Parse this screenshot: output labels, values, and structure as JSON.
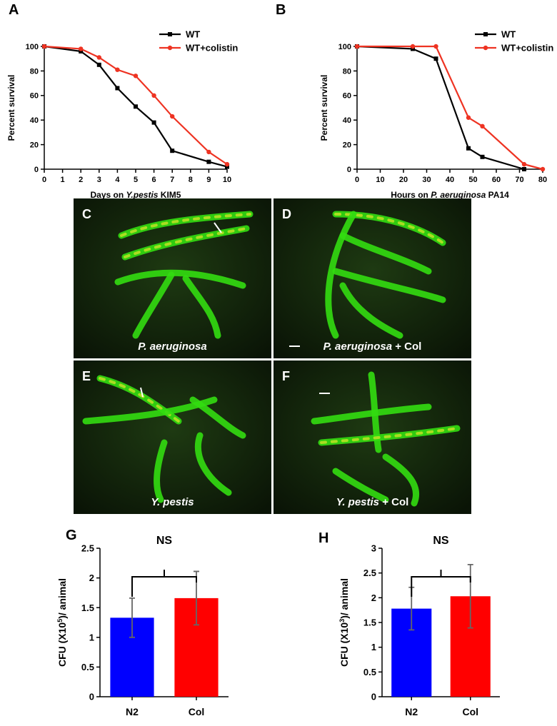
{
  "chart_data": [
    {
      "type": "line",
      "panel_label": "A",
      "xlabel_parts": [
        {
          "text": "Days on "
        },
        {
          "text": "Y.pestis",
          "italic": true
        },
        {
          "text": " KIM5"
        }
      ],
      "ylabel_parts": [
        {
          "text": "Percent survival"
        }
      ],
      "xlim": [
        0,
        10
      ],
      "xticks": [
        0,
        1,
        2,
        3,
        4,
        5,
        6,
        7,
        8,
        9,
        10
      ],
      "ylim": [
        0,
        100
      ],
      "yticks": [
        0,
        20,
        40,
        60,
        80,
        100
      ],
      "legend": "top-right",
      "series": [
        {
          "name": "WT",
          "color": "#000000",
          "marker": "square",
          "x": [
            0,
            2,
            3,
            4,
            5,
            6,
            7,
            9,
            10
          ],
          "values": [
            100,
            96,
            85,
            66,
            51,
            38,
            15,
            6,
            2
          ]
        },
        {
          "name": "WT+colistin",
          "color": "#ee3322",
          "marker": "circle",
          "x": [
            0,
            2,
            3,
            4,
            5,
            6,
            7,
            9,
            10
          ],
          "values": [
            100,
            98,
            91,
            81,
            76,
            60,
            43,
            14,
            4
          ]
        }
      ]
    },
    {
      "type": "line",
      "panel_label": "B",
      "xlabel_parts": [
        {
          "text": "Hours on "
        },
        {
          "text": "P. aeruginosa",
          "italic": true
        },
        {
          "text": " PA14"
        }
      ],
      "ylabel_parts": [
        {
          "text": "Percent survival"
        }
      ],
      "xlim": [
        0,
        80
      ],
      "xticks": [
        0,
        10,
        20,
        30,
        40,
        50,
        60,
        70,
        80
      ],
      "ylim": [
        0,
        100
      ],
      "yticks": [
        0,
        20,
        40,
        60,
        80,
        100
      ],
      "legend": "top-right",
      "series": [
        {
          "name": "WT",
          "color": "#000000",
          "marker": "square",
          "x": [
            0,
            24,
            34,
            48,
            54,
            72
          ],
          "values": [
            100,
            98,
            90,
            17,
            10,
            0
          ]
        },
        {
          "name": "WT+colistin",
          "color": "#ee3322",
          "marker": "circle",
          "x": [
            0,
            24,
            34,
            48,
            54,
            72,
            80
          ],
          "values": [
            100,
            100,
            100,
            42,
            35,
            4,
            0
          ]
        }
      ]
    },
    {
      "type": "bar",
      "panel_label": "G",
      "ylabel_parts": [
        {
          "text": "CFU (X10"
        },
        {
          "text": "5",
          "sup": true
        },
        {
          "text": ")/ animal"
        }
      ],
      "categories": [
        "N2",
        "Col"
      ],
      "values": [
        1.33,
        1.66
      ],
      "errors": [
        0.33,
        0.45
      ],
      "colors": [
        "#0000ff",
        "#ff0000"
      ],
      "ylim": [
        0,
        2.5
      ],
      "yticks": [
        0,
        0.5,
        1,
        1.5,
        2,
        2.5
      ],
      "annotation": "NS"
    },
    {
      "type": "bar",
      "panel_label": "H",
      "ylabel_parts": [
        {
          "text": "CFU (X10"
        },
        {
          "text": "3",
          "sup": true
        },
        {
          "text": ")/ animal"
        }
      ],
      "categories": [
        "N2",
        "Col"
      ],
      "values": [
        1.78,
        2.03
      ],
      "errors": [
        0.43,
        0.64
      ],
      "colors": [
        "#0000ff",
        "#ff0000"
      ],
      "ylim": [
        0,
        3
      ],
      "yticks": [
        0,
        0.5,
        1,
        1.5,
        2,
        2.5,
        3
      ],
      "annotation": "NS"
    }
  ],
  "image_panels": [
    {
      "label": "C",
      "caption": [
        {
          "text": "P. aeruginosa",
          "italic": true
        }
      ]
    },
    {
      "label": "D",
      "caption": [
        {
          "text": "P. aeruginosa",
          "italic": true
        },
        {
          "text": " + Col"
        }
      ]
    },
    {
      "label": "E",
      "caption": [
        {
          "text": "Y. pestis",
          "italic": true
        }
      ]
    },
    {
      "label": "F",
      "caption": [
        {
          "text": "Y. pestis",
          "italic": true
        },
        {
          "text": " + Col"
        }
      ]
    }
  ]
}
